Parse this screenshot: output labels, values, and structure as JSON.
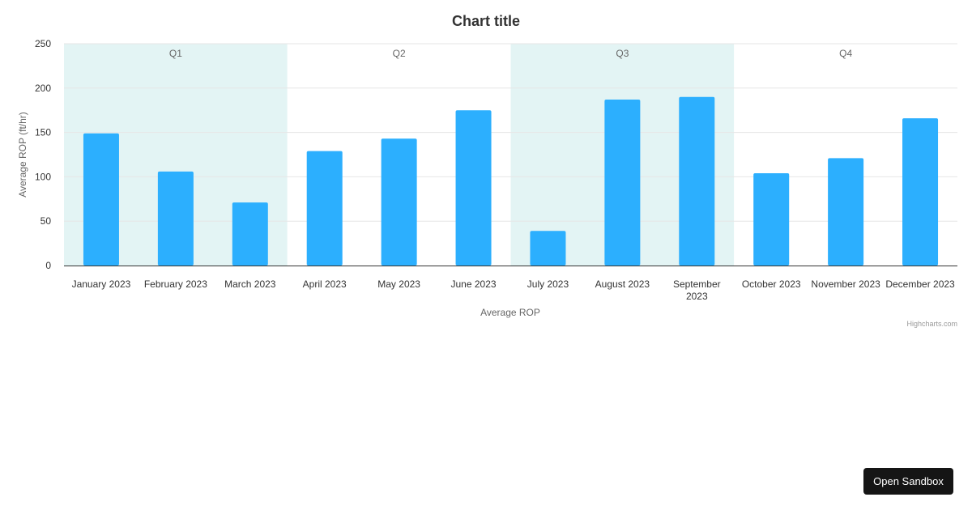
{
  "chart_data": {
    "type": "bar",
    "title": "Chart title",
    "xlabel": "Average ROP",
    "ylabel": "Average ROP (ft/hr)",
    "ylim": [
      0,
      250
    ],
    "yticks": [
      0,
      50,
      100,
      150,
      200,
      250
    ],
    "grid": true,
    "legend": "none",
    "categories": [
      "January 2023",
      "February 2023",
      "March 2023",
      "April 2023",
      "May 2023",
      "June 2023",
      "July 2023",
      "August 2023",
      "September 2023",
      "October 2023",
      "November 2023",
      "December 2023"
    ],
    "series": [
      {
        "values": [
          149,
          106,
          71,
          129,
          143,
          175,
          39,
          187,
          190,
          104,
          121,
          166
        ],
        "color": "#2caffe"
      }
    ],
    "plot_bands": [
      {
        "label": "Q1",
        "from": 0,
        "to": 2,
        "color": "#e3f4f4"
      },
      {
        "label": "Q2",
        "from": 3,
        "to": 5,
        "color": "#ffffff"
      },
      {
        "label": "Q3",
        "from": 6,
        "to": 8,
        "color": "#e3f4f4"
      },
      {
        "label": "Q4",
        "from": 9,
        "to": 11,
        "color": "#ffffff"
      }
    ]
  },
  "credits": "Highcharts.com",
  "sandbox_button": {
    "label": "Open Sandbox"
  },
  "colors": {
    "gridline": "#e6e6e6",
    "axis_line": "#333333",
    "band_alt": "#e3f4f4"
  }
}
